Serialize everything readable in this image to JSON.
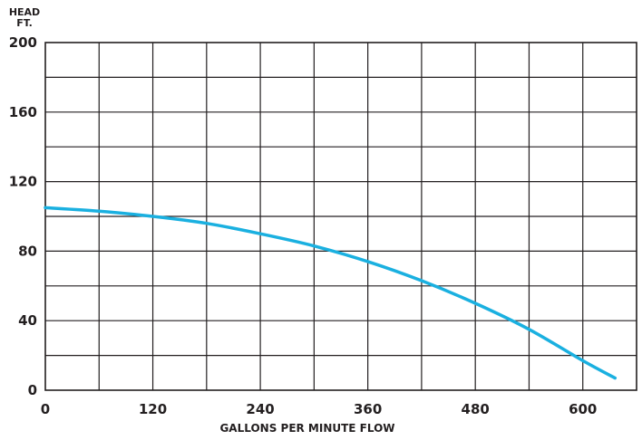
{
  "chart_data": {
    "type": "line",
    "title": "",
    "ylabel_lines": [
      "HEAD",
      "FT."
    ],
    "xlabel": "GALLONS PER MINUTE FLOW",
    "xlim": [
      0,
      660
    ],
    "ylim": [
      0,
      200
    ],
    "x_ticks": [
      0,
      120,
      240,
      360,
      480,
      600
    ],
    "y_ticks": [
      0,
      40,
      80,
      120,
      160,
      200
    ],
    "grid": true,
    "grid_x_step": 60,
    "grid_y_step": 20,
    "series": [
      {
        "color": "#1ab0e0",
        "x": [
          0,
          60,
          120,
          180,
          240,
          300,
          360,
          420,
          480,
          540,
          600,
          636
        ],
        "y": [
          105,
          103,
          100,
          96,
          90,
          83,
          74,
          63,
          50,
          35,
          17,
          7
        ]
      }
    ]
  }
}
